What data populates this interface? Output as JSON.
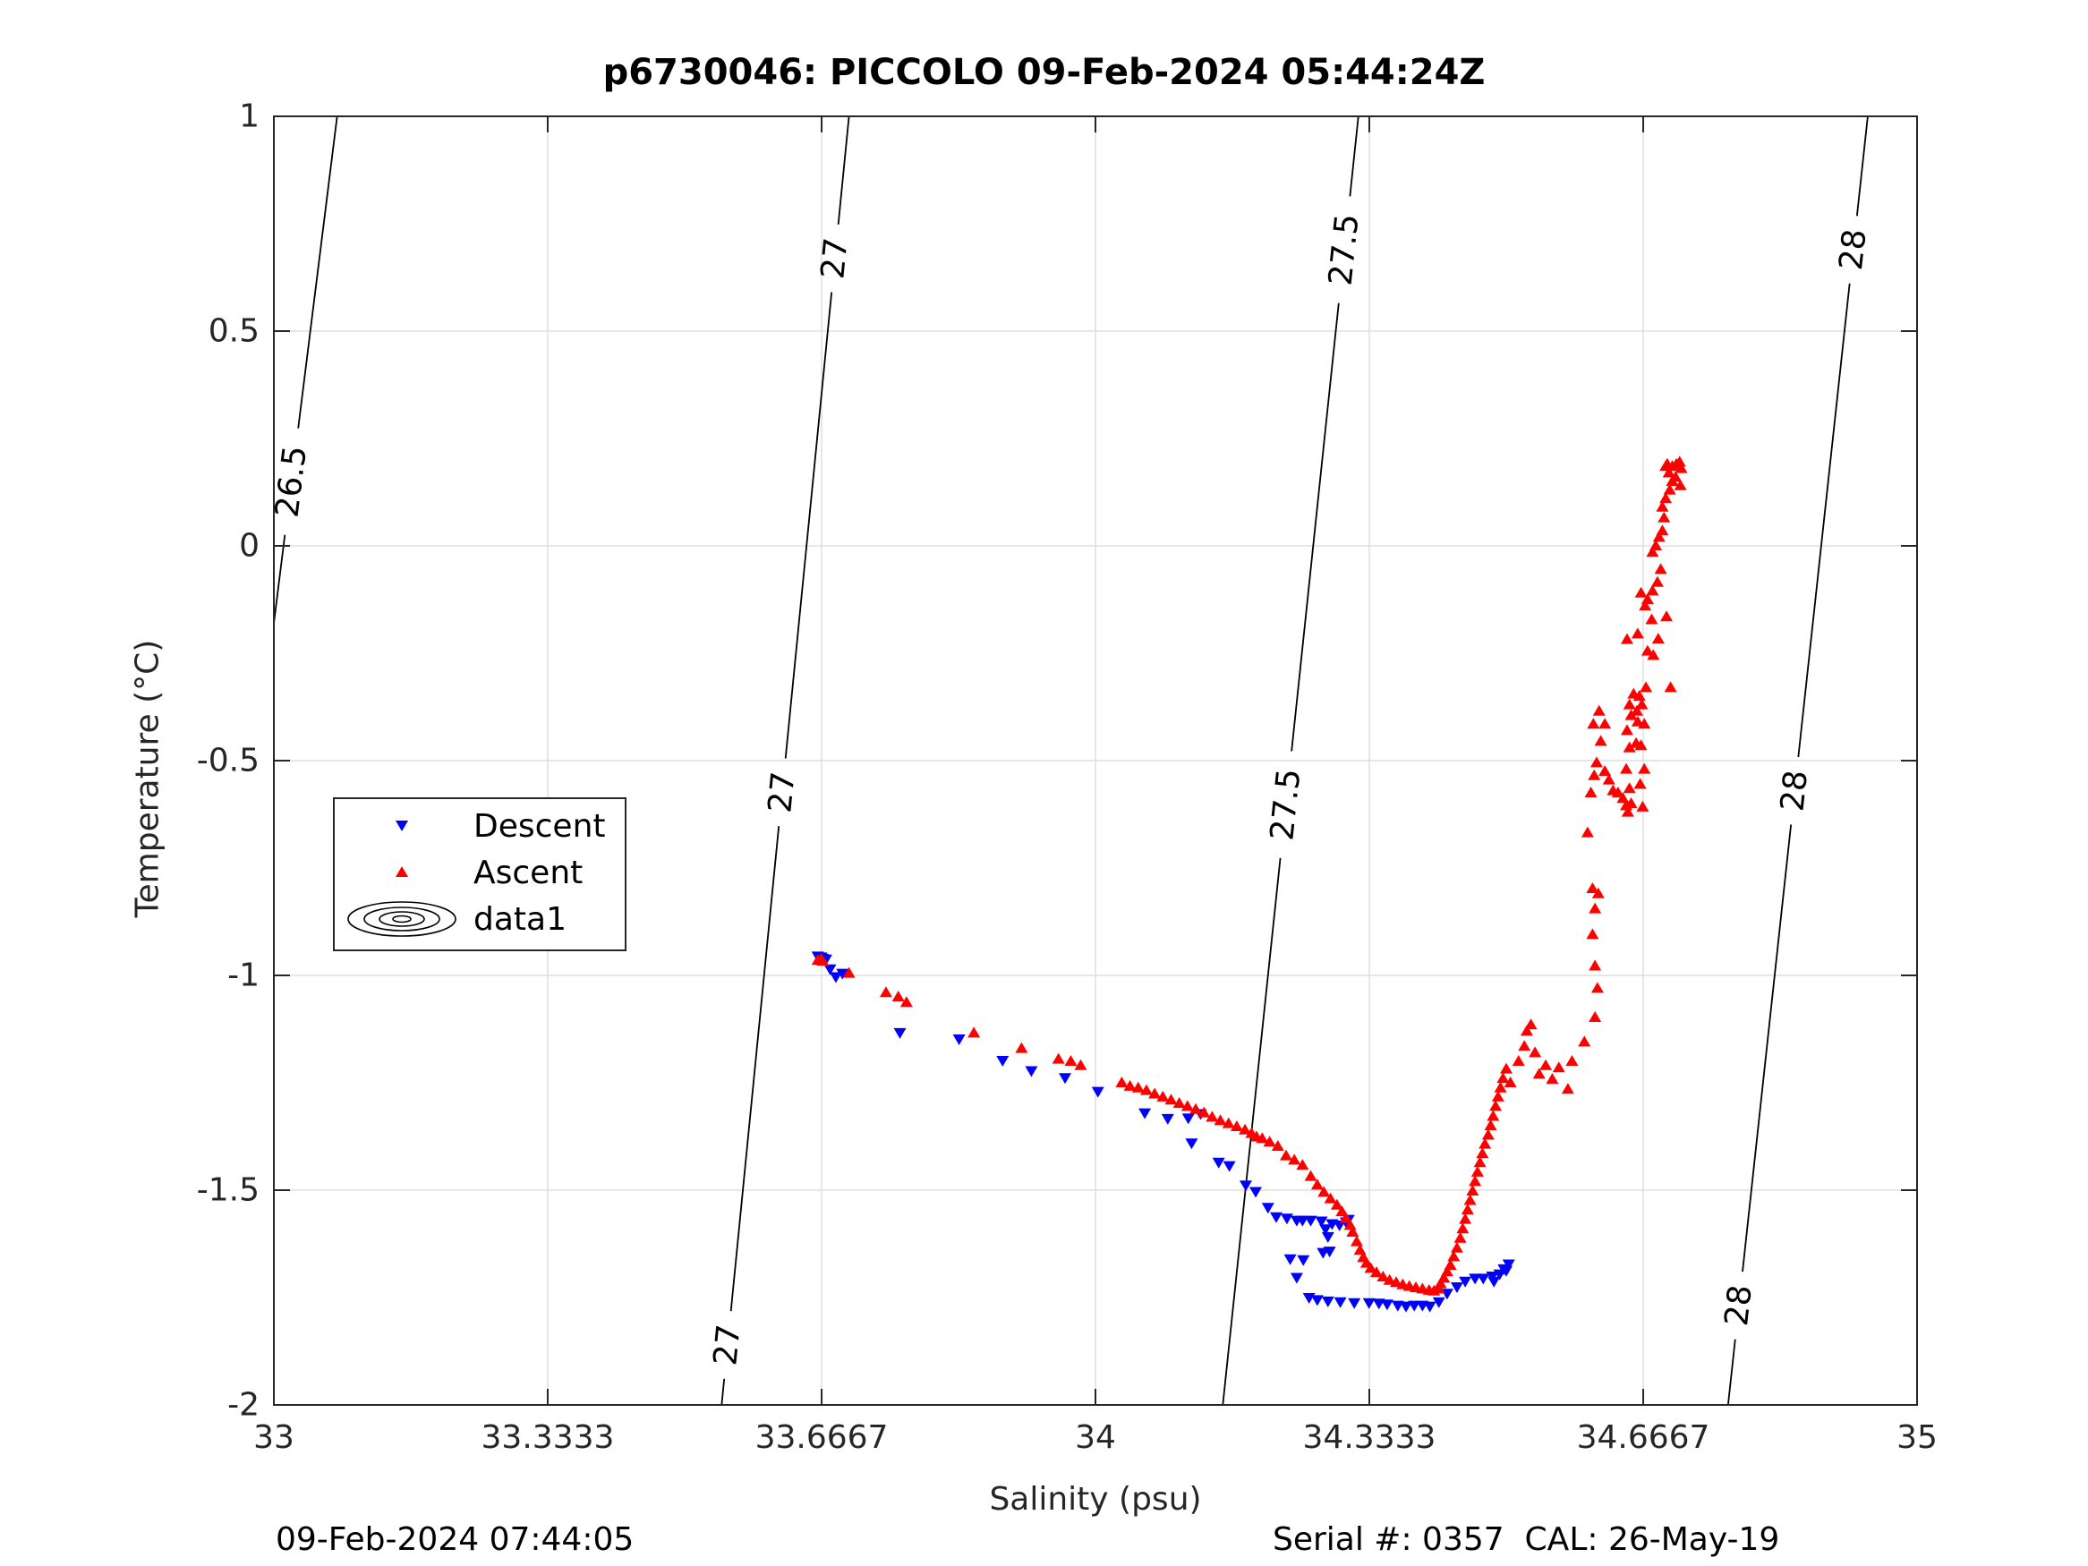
{
  "title": "p6730046: PICCOLO 09-Feb-2024 05:44:24Z",
  "footer": {
    "left": "09-Feb-2024 07:44:05",
    "right": "Serial #: 0357  CAL: 26-May-19"
  },
  "chart_data": {
    "type": "scatter",
    "title": "p6730046: PICCOLO 09-Feb-2024 05:44:24Z",
    "xlabel": "Salinity (psu)",
    "ylabel": "Temperature (°C)",
    "xlim": [
      33,
      35
    ],
    "ylim": [
      -2,
      1
    ],
    "xticks": [
      "33",
      "33.3333",
      "33.6667",
      "34",
      "34.3333",
      "34.6667",
      "35"
    ],
    "xtick_values": [
      33,
      33.3333,
      33.6667,
      34,
      34.3333,
      34.6667,
      35
    ],
    "yticks": [
      "-2",
      "-1.5",
      "-1",
      "-0.5",
      "0",
      "0.5",
      "1"
    ],
    "ytick_values": [
      -2,
      -1.5,
      -1,
      -0.5,
      0,
      0.5,
      1
    ],
    "grid": true,
    "legend_position": "left",
    "density_contours": [
      {
        "level": "26.5",
        "points": [
          [
            33.0,
            -0.18
          ],
          [
            33.077,
            1.0
          ]
        ],
        "labels": [
          {
            "x": 33.02,
            "y": 0.15
          }
        ]
      },
      {
        "level": "27",
        "points": [
          [
            33.545,
            -2.0
          ],
          [
            33.7,
            1.0
          ]
        ],
        "labels": [
          {
            "x": 33.55,
            "y": -1.86
          },
          {
            "x": 33.6,
            "y": -0.57
          },
          {
            "x": 33.68,
            "y": 0.67
          }
        ]
      },
      {
        "level": "27.5",
        "points": [
          [
            34.155,
            -2.0
          ],
          [
            34.32,
            1.0
          ]
        ],
        "labels": [
          {
            "x": 34.22,
            "y": -0.6
          },
          {
            "x": 34.3,
            "y": 0.69
          }
        ]
      },
      {
        "level": "28",
        "points": [
          [
            34.77,
            -2.0
          ],
          [
            34.94,
            1.0
          ]
        ],
        "labels": [
          {
            "x": 34.79,
            "y": -1.77
          },
          {
            "x": 34.85,
            "y": -0.57
          },
          {
            "x": 34.92,
            "y": 0.69
          }
        ]
      }
    ],
    "series": [
      {
        "name": "Descent",
        "marker": "triangle-down",
        "color": "#0000ff",
        "points": [
          [
            33.662,
            -0.955
          ],
          [
            33.666,
            -0.957
          ],
          [
            33.668,
            -0.96
          ],
          [
            33.672,
            -0.962
          ],
          [
            33.677,
            -0.985
          ],
          [
            33.684,
            -1.003
          ],
          [
            33.692,
            -0.995
          ],
          [
            33.762,
            -1.133
          ],
          [
            33.834,
            -1.148
          ],
          [
            33.887,
            -1.198
          ],
          [
            33.922,
            -1.222
          ],
          [
            33.963,
            -1.238
          ],
          [
            34.003,
            -1.27
          ],
          [
            34.06,
            -1.32
          ],
          [
            34.088,
            -1.333
          ],
          [
            34.113,
            -1.332
          ],
          [
            34.128,
            -1.322
          ],
          [
            34.117,
            -1.39
          ],
          [
            34.15,
            -1.435
          ],
          [
            34.163,
            -1.443
          ],
          [
            34.183,
            -1.488
          ],
          [
            34.195,
            -1.503
          ],
          [
            34.21,
            -1.54
          ],
          [
            34.22,
            -1.562
          ],
          [
            34.233,
            -1.565
          ],
          [
            34.245,
            -1.57
          ],
          [
            34.252,
            -1.57
          ],
          [
            34.262,
            -1.57
          ],
          [
            34.275,
            -1.572
          ],
          [
            34.28,
            -1.59
          ],
          [
            34.288,
            -1.578
          ],
          [
            34.297,
            -1.581
          ],
          [
            34.305,
            -1.574
          ],
          [
            34.308,
            -1.568
          ],
          [
            34.283,
            -1.608
          ],
          [
            34.277,
            -1.645
          ],
          [
            34.285,
            -1.642
          ],
          [
            34.253,
            -1.662
          ],
          [
            34.237,
            -1.66
          ],
          [
            34.245,
            -1.703
          ],
          [
            34.26,
            -1.75
          ],
          [
            34.27,
            -1.755
          ],
          [
            34.283,
            -1.758
          ],
          [
            34.298,
            -1.76
          ],
          [
            34.315,
            -1.762
          ],
          [
            34.333,
            -1.762
          ],
          [
            34.345,
            -1.763
          ],
          [
            34.355,
            -1.765
          ],
          [
            34.368,
            -1.768
          ],
          [
            34.378,
            -1.77
          ],
          [
            34.388,
            -1.768
          ],
          [
            34.398,
            -1.768
          ],
          [
            34.407,
            -1.77
          ],
          [
            34.418,
            -1.76
          ],
          [
            34.428,
            -1.74
          ],
          [
            34.44,
            -1.725
          ],
          [
            34.45,
            -1.712
          ],
          [
            34.462,
            -1.705
          ],
          [
            34.472,
            -1.705
          ],
          [
            34.483,
            -1.7
          ],
          [
            34.492,
            -1.695
          ],
          [
            34.5,
            -1.687
          ],
          [
            34.503,
            -1.672
          ],
          [
            34.497,
            -1.683
          ],
          [
            34.485,
            -1.712
          ]
        ]
      },
      {
        "name": "Ascent",
        "marker": "triangle-up",
        "color": "#ff0000",
        "points": [
          [
            33.662,
            -0.965
          ],
          [
            33.666,
            -0.962
          ],
          [
            33.668,
            -0.967
          ],
          [
            33.7,
            -0.995
          ],
          [
            33.745,
            -1.04
          ],
          [
            33.76,
            -1.05
          ],
          [
            33.77,
            -1.063
          ],
          [
            33.852,
            -1.134
          ],
          [
            33.91,
            -1.17
          ],
          [
            33.955,
            -1.195
          ],
          [
            33.97,
            -1.2
          ],
          [
            33.982,
            -1.21
          ],
          [
            34.032,
            -1.25
          ],
          [
            34.042,
            -1.258
          ],
          [
            34.052,
            -1.262
          ],
          [
            34.062,
            -1.268
          ],
          [
            34.072,
            -1.276
          ],
          [
            34.082,
            -1.283
          ],
          [
            34.092,
            -1.29
          ],
          [
            34.102,
            -1.298
          ],
          [
            34.112,
            -1.305
          ],
          [
            34.122,
            -1.312
          ],
          [
            34.132,
            -1.32
          ],
          [
            34.142,
            -1.33
          ],
          [
            34.152,
            -1.338
          ],
          [
            34.162,
            -1.345
          ],
          [
            34.172,
            -1.352
          ],
          [
            34.182,
            -1.36
          ],
          [
            34.19,
            -1.368
          ],
          [
            34.196,
            -1.376
          ],
          [
            34.203,
            -1.38
          ],
          [
            34.212,
            -1.388
          ],
          [
            34.222,
            -1.398
          ],
          [
            34.232,
            -1.42
          ],
          [
            34.242,
            -1.43
          ],
          [
            34.252,
            -1.442
          ],
          [
            34.262,
            -1.468
          ],
          [
            34.27,
            -1.488
          ],
          [
            34.278,
            -1.505
          ],
          [
            34.286,
            -1.52
          ],
          [
            34.294,
            -1.535
          ],
          [
            34.3,
            -1.55
          ],
          [
            34.305,
            -1.566
          ],
          [
            34.31,
            -1.582
          ],
          [
            34.313,
            -1.598
          ],
          [
            34.318,
            -1.62
          ],
          [
            34.322,
            -1.64
          ],
          [
            34.326,
            -1.657
          ],
          [
            34.33,
            -1.67
          ],
          [
            34.335,
            -1.682
          ],
          [
            34.342,
            -1.692
          ],
          [
            34.35,
            -1.702
          ],
          [
            34.358,
            -1.71
          ],
          [
            34.366,
            -1.715
          ],
          [
            34.374,
            -1.72
          ],
          [
            34.382,
            -1.724
          ],
          [
            34.39,
            -1.727
          ],
          [
            34.398,
            -1.73
          ],
          [
            34.406,
            -1.733
          ],
          [
            34.412,
            -1.735
          ],
          [
            34.418,
            -1.73
          ],
          [
            34.42,
            -1.718
          ],
          [
            34.424,
            -1.705
          ],
          [
            34.428,
            -1.69
          ],
          [
            34.432,
            -1.675
          ],
          [
            34.436,
            -1.655
          ],
          [
            34.44,
            -1.635
          ],
          [
            34.444,
            -1.612
          ],
          [
            34.447,
            -1.59
          ],
          [
            34.45,
            -1.568
          ],
          [
            34.453,
            -1.546
          ],
          [
            34.456,
            -1.524
          ],
          [
            34.459,
            -1.502
          ],
          [
            34.462,
            -1.48
          ],
          [
            34.465,
            -1.458
          ],
          [
            34.468,
            -1.436
          ],
          [
            34.471,
            -1.415
          ],
          [
            34.474,
            -1.393
          ],
          [
            34.478,
            -1.372
          ],
          [
            34.481,
            -1.35
          ],
          [
            34.484,
            -1.328
          ],
          [
            34.487,
            -1.305
          ],
          [
            34.49,
            -1.283
          ],
          [
            34.493,
            -1.262
          ],
          [
            34.496,
            -1.24
          ],
          [
            34.5,
            -1.218
          ],
          [
            34.505,
            -1.25
          ],
          [
            34.515,
            -1.2
          ],
          [
            34.522,
            -1.165
          ],
          [
            34.525,
            -1.13
          ],
          [
            34.53,
            -1.115
          ],
          [
            34.535,
            -1.18
          ],
          [
            34.54,
            -1.23
          ],
          [
            34.548,
            -1.21
          ],
          [
            34.556,
            -1.242
          ],
          [
            34.564,
            -1.215
          ],
          [
            34.575,
            -1.265
          ],
          [
            34.58,
            -1.2
          ],
          [
            34.595,
            -1.155
          ],
          [
            34.608,
            -1.098
          ],
          [
            34.611,
            -1.03
          ],
          [
            34.608,
            -0.978
          ],
          [
            34.605,
            -0.905
          ],
          [
            34.608,
            -0.845
          ],
          [
            34.612,
            -0.81
          ],
          [
            34.605,
            -0.798
          ],
          [
            34.599,
            -0.668
          ],
          [
            34.603,
            -0.575
          ],
          [
            34.607,
            -0.535
          ],
          [
            34.61,
            -0.505
          ],
          [
            34.606,
            -0.415
          ],
          [
            34.613,
            -0.385
          ],
          [
            34.62,
            -0.415
          ],
          [
            34.615,
            -0.455
          ],
          [
            34.62,
            -0.525
          ],
          [
            34.625,
            -0.545
          ],
          [
            34.63,
            -0.57
          ],
          [
            34.636,
            -0.575
          ],
          [
            34.642,
            -0.588
          ],
          [
            34.646,
            -0.605
          ],
          [
            34.648,
            -0.62
          ],
          [
            34.652,
            -0.6
          ],
          [
            34.65,
            -0.565
          ],
          [
            34.646,
            -0.52
          ],
          [
            34.65,
            -0.47
          ],
          [
            34.647,
            -0.43
          ],
          [
            34.652,
            -0.395
          ],
          [
            34.65,
            -0.37
          ],
          [
            34.655,
            -0.345
          ],
          [
            34.659,
            -0.385
          ],
          [
            34.658,
            -0.46
          ],
          [
            34.663,
            -0.555
          ],
          [
            34.666,
            -0.608
          ],
          [
            34.668,
            -0.52
          ],
          [
            34.664,
            -0.465
          ],
          [
            34.66,
            -0.41
          ],
          [
            34.662,
            -0.35
          ],
          [
            34.665,
            -0.37
          ],
          [
            34.67,
            -0.33
          ],
          [
            34.668,
            -0.415
          ],
          [
            34.647,
            -0.218
          ],
          [
            34.66,
            -0.205
          ],
          [
            34.672,
            -0.245
          ],
          [
            34.677,
            -0.172
          ],
          [
            34.669,
            -0.14
          ],
          [
            34.664,
            -0.11
          ],
          [
            34.672,
            -0.125
          ],
          [
            34.678,
            -0.105
          ],
          [
            34.684,
            -0.085
          ],
          [
            34.688,
            -0.055
          ],
          [
            34.678,
            -0.015
          ],
          [
            34.682,
            0.0
          ],
          [
            34.686,
            0.02
          ],
          [
            34.69,
            0.035
          ],
          [
            34.692,
            0.065
          ],
          [
            34.69,
            0.09
          ],
          [
            34.694,
            0.11
          ],
          [
            34.699,
            0.13
          ],
          [
            34.702,
            0.15
          ],
          [
            34.698,
            0.17
          ],
          [
            34.694,
            0.185
          ],
          [
            34.696,
            0.19
          ],
          [
            34.702,
            0.185
          ],
          [
            34.707,
            0.19
          ],
          [
            34.711,
            0.195
          ],
          [
            34.713,
            0.18
          ],
          [
            34.706,
            0.16
          ],
          [
            34.712,
            0.14
          ],
          [
            34.679,
            -0.255
          ],
          [
            34.685,
            -0.217
          ],
          [
            34.695,
            -0.165
          ],
          [
            34.7,
            -0.33
          ]
        ]
      }
    ]
  }
}
